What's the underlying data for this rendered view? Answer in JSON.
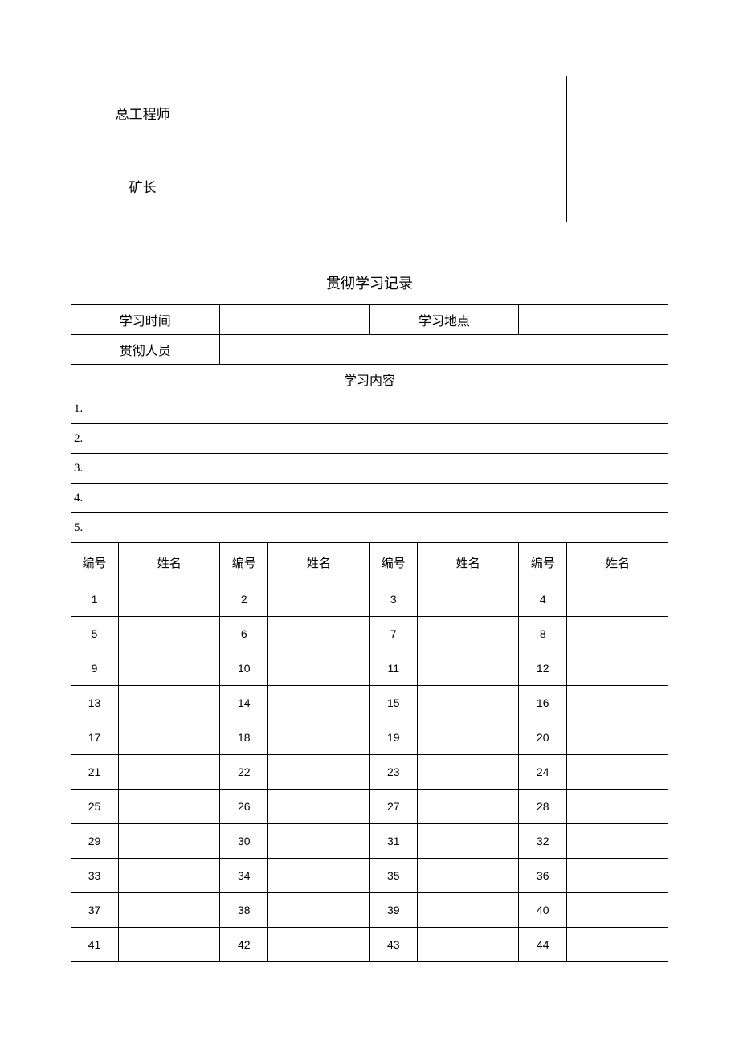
{
  "top_rows": [
    {
      "label": "总工程师",
      "v1": "",
      "v2": "",
      "v3": ""
    },
    {
      "label": "矿长",
      "v1": "",
      "v2": "",
      "v3": ""
    }
  ],
  "section_title": "贯彻学习记录",
  "fields": {
    "study_time_label": "学习时间",
    "study_time_value": "",
    "study_place_label": "学习地点",
    "study_place_value": "",
    "personnel_label": "贯彻人员",
    "personnel_value": "",
    "content_label": "学习内容"
  },
  "content_items": [
    "1.",
    "2.",
    "3.",
    "4.",
    "5."
  ],
  "columns": {
    "num": "编号",
    "name": "姓名"
  },
  "rows": [
    [
      1,
      2,
      3,
      4
    ],
    [
      5,
      6,
      7,
      8
    ],
    [
      9,
      10,
      11,
      12
    ],
    [
      13,
      14,
      15,
      16
    ],
    [
      17,
      18,
      19,
      20
    ],
    [
      21,
      22,
      23,
      24
    ],
    [
      25,
      26,
      27,
      28
    ],
    [
      29,
      30,
      31,
      32
    ],
    [
      33,
      34,
      35,
      36
    ],
    [
      37,
      38,
      39,
      40
    ],
    [
      41,
      42,
      43,
      44
    ]
  ]
}
